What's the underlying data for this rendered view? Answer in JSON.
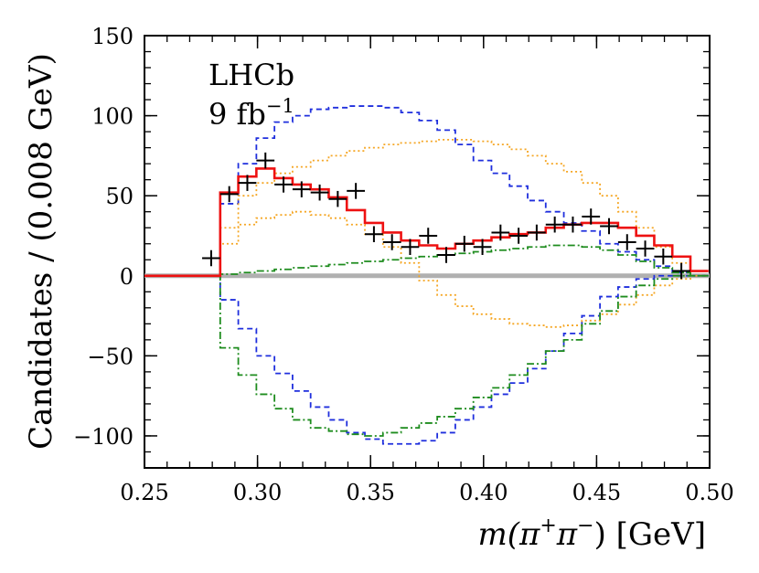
{
  "chart_data": {
    "type": "histogram",
    "title": "",
    "annotations": [
      "LHCb",
      "9 fb",
      "−1"
    ],
    "xlabel": {
      "prefix": "m(",
      "pi1": "π",
      "sup1": "+",
      "pi2": "π",
      "sup2": "−",
      "suffix": ") [GeV]"
    },
    "ylabel": "Candidates / (0.008 GeV)",
    "xlim": [
      0.25,
      0.5
    ],
    "ylim": [
      -120,
      150
    ],
    "xticks": [
      0.25,
      0.3,
      0.35,
      0.4,
      0.45,
      0.5
    ],
    "xtick_labels": [
      "0.25",
      "0.30",
      "0.35",
      "0.40",
      "0.45",
      "0.50"
    ],
    "yticks": [
      -100,
      -50,
      0,
      50,
      100,
      150
    ],
    "ytick_labels": [
      "−100",
      "−50",
      "0",
      "50",
      "100",
      "150"
    ],
    "bin_edges": [
      0.2755,
      0.2835,
      0.2915,
      0.2995,
      0.3075,
      0.3155,
      0.3235,
      0.3315,
      0.3395,
      0.3475,
      0.3555,
      0.3635,
      0.3715,
      0.3795,
      0.3875,
      0.3955,
      0.4035,
      0.4115,
      0.4195,
      0.4275,
      0.4355,
      0.4435,
      0.4515,
      0.4595,
      0.4675,
      0.4755,
      0.4835,
      0.4915
    ],
    "zero_line": {
      "x": [
        0.25,
        0.5
      ],
      "y": 0,
      "color": "#b0b0b0"
    },
    "data_points": {
      "name": "Data",
      "color": "#000000",
      "x": [
        0.2795,
        0.2875,
        0.2955,
        0.3035,
        0.3115,
        0.3195,
        0.3275,
        0.3355,
        0.3435,
        0.3515,
        0.3595,
        0.3675,
        0.3755,
        0.3835,
        0.3915,
        0.3995,
        0.4075,
        0.4155,
        0.4235,
        0.4315,
        0.4395,
        0.4475,
        0.4555,
        0.4635,
        0.4715,
        0.4795,
        0.4875
      ],
      "y": [
        11,
        51,
        58,
        72,
        57,
        54,
        52,
        48,
        53,
        26,
        21,
        18,
        25,
        13,
        20,
        18,
        27,
        25,
        27,
        32,
        32,
        37,
        31,
        21,
        17,
        12,
        3
      ],
      "xerr": 0.004,
      "yerr": 5
    },
    "series": [
      {
        "name": "Total fit",
        "style": "solid",
        "color": "#ee1111",
        "values": [
          0,
          52,
          62,
          67,
          61,
          57,
          54,
          49,
          41,
          33,
          27,
          22,
          19,
          17,
          20,
          22,
          24,
          26,
          27,
          30,
          32,
          33,
          33,
          30,
          25,
          19,
          12,
          3
        ]
      },
      {
        "name": "Component (blue, positive)",
        "style": "dashed",
        "color": "#1f2fdd",
        "values": [
          0,
          45,
          70,
          86,
          96,
          100,
          104,
          105,
          106,
          106,
          105,
          102,
          97,
          91,
          82,
          72,
          64,
          56,
          47,
          40,
          33,
          28,
          20,
          15,
          10,
          6,
          2,
          0
        ]
      },
      {
        "name": "Component (blue, negative)",
        "style": "dashed",
        "color": "#1f2fdd",
        "values": [
          0,
          -15,
          -33,
          -50,
          -61,
          -72,
          -82,
          -90,
          -98,
          -102,
          -105,
          -105,
          -103,
          -98,
          -90,
          -82,
          -74,
          -67,
          -58,
          -47,
          -36,
          -25,
          -13,
          -7,
          -2,
          0,
          0,
          0
        ]
      },
      {
        "name": "Component (orange, upper)",
        "style": "dotted",
        "color": "#f5a623",
        "values": [
          0,
          30,
          50,
          58,
          64,
          68,
          72,
          75,
          78,
          80,
          82,
          83,
          84,
          85,
          85,
          84,
          82,
          79,
          75,
          70,
          65,
          58,
          50,
          40,
          30,
          18,
          8,
          0
        ]
      },
      {
        "name": "Component (orange, lower)",
        "style": "dotted",
        "color": "#f5a623",
        "values": [
          0,
          20,
          32,
          36,
          38,
          40,
          38,
          36,
          32,
          26,
          18,
          8,
          -3,
          -12,
          -19,
          -24,
          -27,
          -30,
          -31,
          -32,
          -31,
          -28,
          -24,
          -18,
          -12,
          -6,
          -2,
          0
        ]
      },
      {
        "name": "Component (green, positive)",
        "style": "dashdot",
        "color": "#1e8c1e",
        "values": [
          0,
          1,
          2,
          3,
          4,
          5,
          6,
          7,
          8,
          9,
          10,
          11,
          12,
          13,
          14,
          15,
          16,
          17,
          18,
          19,
          19,
          18,
          16,
          13,
          9,
          5,
          2,
          0
        ]
      },
      {
        "name": "Component (green, negative)",
        "style": "dashdot",
        "color": "#1e8c1e",
        "values": [
          0,
          -45,
          -62,
          -74,
          -83,
          -90,
          -95,
          -97,
          -99,
          -100,
          -98,
          -95,
          -92,
          -88,
          -83,
          -76,
          -70,
          -62,
          -55,
          -47,
          -40,
          -30,
          -22,
          -13,
          -6,
          -2,
          0,
          0
        ]
      }
    ]
  }
}
